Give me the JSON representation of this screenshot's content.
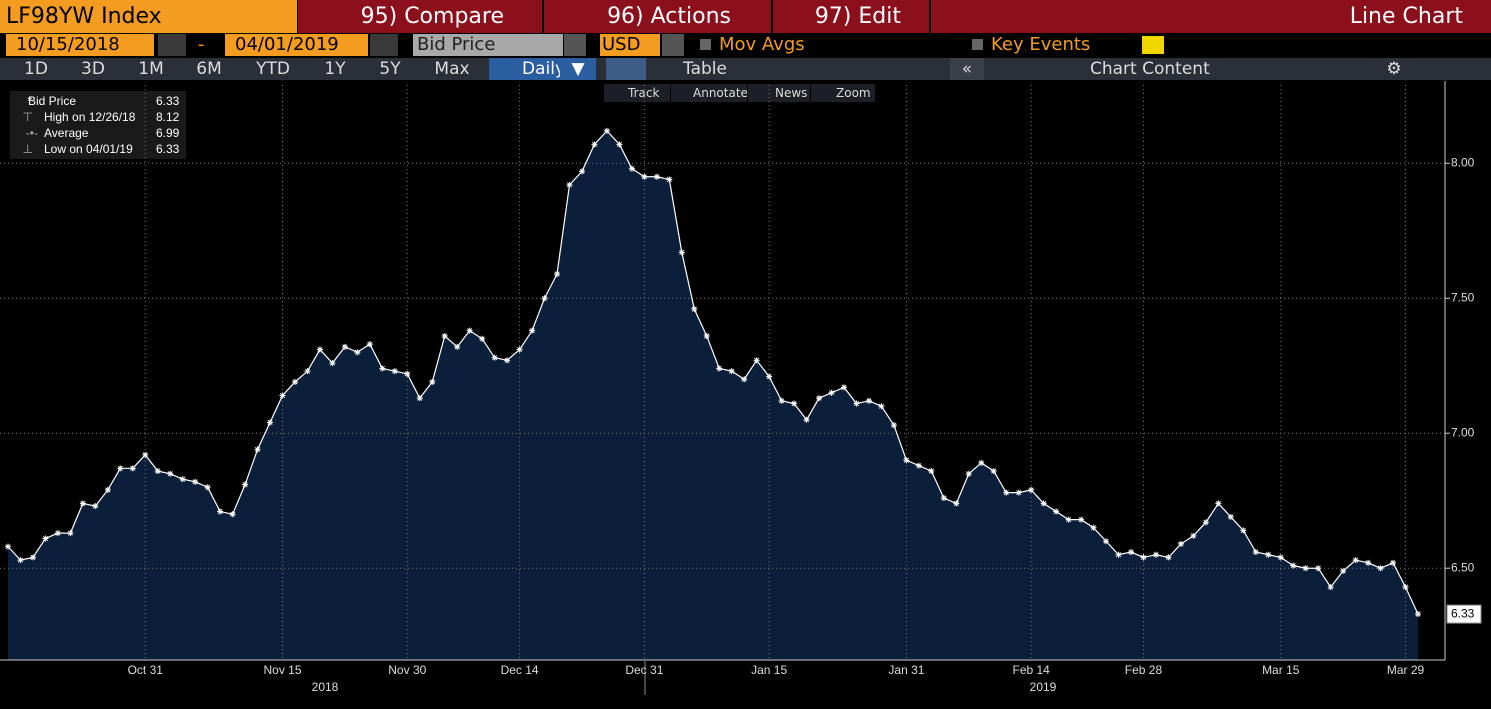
{
  "toolbar": {
    "security": "LF98YW Index",
    "menus": [
      "95) Compare",
      "96) Actions",
      "97) Edit"
    ],
    "view": "Line Chart",
    "start_date": "10/15/2018",
    "date_separator": "-",
    "end_date": "04/01/2019",
    "field": "Bid Price",
    "currency": "USD",
    "options": [
      "Mov Avgs",
      "Key Events"
    ],
    "periods": [
      "1D",
      "3D",
      "1M",
      "6M",
      "YTD",
      "1Y",
      "5Y",
      "Max"
    ],
    "frequency": "Daily",
    "tabs": [
      "Table"
    ],
    "chart_content": "Chart Content",
    "tools": [
      "Track",
      "Annotate",
      "News",
      "Zoom"
    ]
  },
  "legend_box": {
    "rows": [
      {
        "label": "High on 12/26/18",
        "value": 8.12
      },
      {
        "label": "Average",
        "value": 6.99
      },
      {
        "label": "Low on 04/01/19",
        "value": 6.33
      }
    ]
  },
  "chart_data": {
    "type": "line",
    "years": [
      "2018",
      "2019"
    ],
    "categories": [
      null,
      null,
      null,
      null,
      null,
      null,
      null,
      null,
      null,
      null,
      null,
      "Oct 31",
      null,
      null,
      null,
      null,
      null,
      null,
      null,
      null,
      null,
      null,
      "Nov 15",
      null,
      null,
      null,
      null,
      null,
      null,
      null,
      null,
      null,
      "Nov 30",
      null,
      null,
      null,
      null,
      null,
      null,
      null,
      null,
      "Dec 14",
      null,
      null,
      null,
      null,
      null,
      null,
      null,
      null,
      null,
      "Dec 31",
      null,
      null,
      null,
      null,
      null,
      null,
      null,
      null,
      null,
      "Jan 15",
      null,
      null,
      null,
      null,
      null,
      null,
      null,
      null,
      null,
      null,
      "Jan 31",
      null,
      null,
      null,
      null,
      null,
      null,
      null,
      null,
      null,
      "Feb 14",
      null,
      null,
      null,
      null,
      null,
      null,
      null,
      null,
      "Feb 28",
      null,
      null,
      null,
      null,
      null,
      null,
      null,
      null,
      null,
      null,
      "Mar 15",
      null,
      null,
      null,
      null,
      null,
      null,
      null,
      null,
      null,
      "Mar 29",
      null
    ],
    "series": [
      {
        "name": "Bid Price",
        "color": "#ffffff",
        "fill": "#0b1f3b",
        "values": [
          6.58,
          6.53,
          6.54,
          6.61,
          6.63,
          6.63,
          6.74,
          6.73,
          6.79,
          6.87,
          6.87,
          6.92,
          6.86,
          6.85,
          6.83,
          6.82,
          6.8,
          6.71,
          6.7,
          6.81,
          6.94,
          7.04,
          7.14,
          7.19,
          7.23,
          7.31,
          7.26,
          7.32,
          7.3,
          7.33,
          7.24,
          7.23,
          7.22,
          7.13,
          7.19,
          7.36,
          7.32,
          7.38,
          7.35,
          7.28,
          7.27,
          7.31,
          7.38,
          7.5,
          7.59,
          7.92,
          7.97,
          8.07,
          8.12,
          8.07,
          7.98,
          7.95,
          7.95,
          7.94,
          7.67,
          7.46,
          7.36,
          7.24,
          7.23,
          7.2,
          7.27,
          7.21,
          7.12,
          7.11,
          7.05,
          7.13,
          7.15,
          7.17,
          7.11,
          7.12,
          7.1,
          7.03,
          6.9,
          6.88,
          6.86,
          6.76,
          6.74,
          6.85,
          6.89,
          6.86,
          6.78,
          6.78,
          6.79,
          6.74,
          6.71,
          6.68,
          6.68,
          6.65,
          6.6,
          6.55,
          6.56,
          6.54,
          6.55,
          6.54,
          6.59,
          6.62,
          6.67,
          6.74,
          6.69,
          6.64,
          6.56,
          6.55,
          6.54,
          6.51,
          6.5,
          6.5,
          6.43,
          6.49,
          6.53,
          6.52,
          6.5,
          6.52,
          6.43,
          6.33
        ]
      }
    ],
    "ylim": [
      6.16,
      8.29
    ],
    "yticks": [
      {
        "value": 6.5,
        "label": "6.50"
      },
      {
        "value": 7,
        "label": "7.00"
      },
      {
        "value": 7.5,
        "label": "7.50"
      },
      {
        "value": 8,
        "label": "8.00"
      }
    ],
    "grid": true
  }
}
